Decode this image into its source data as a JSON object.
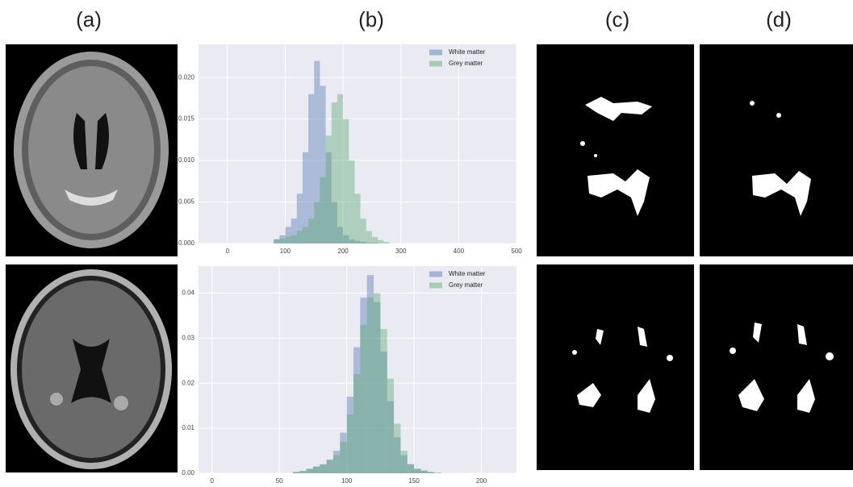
{
  "panel_labels": [
    "(a)",
    "(b)",
    "(c)",
    "(d)"
  ],
  "chart_data": [
    {
      "type": "histogram",
      "bins": [
        80,
        90,
        100,
        110,
        120,
        130,
        140,
        150,
        160,
        170,
        180,
        190,
        200,
        210,
        220,
        230,
        240,
        250,
        260,
        270,
        280
      ],
      "series": [
        {
          "name": "White matter",
          "color": "#4c72b0",
          "values": [
            0.0005,
            0.001,
            0.002,
            0.003,
            0.006,
            0.011,
            0.018,
            0.022,
            0.019,
            0.011,
            0.005,
            0.002,
            0.001,
            0.0005,
            0.0003,
            0.0002,
            0.0001,
            0.0001,
            0,
            0
          ]
        },
        {
          "name": "Grey matter",
          "color": "#55a868",
          "values": [
            0.0005,
            0.0006,
            0.0008,
            0.001,
            0.0015,
            0.002,
            0.003,
            0.005,
            0.008,
            0.013,
            0.017,
            0.018,
            0.015,
            0.01,
            0.006,
            0.003,
            0.0015,
            0.0008,
            0.0004,
            0.0002
          ]
        }
      ],
      "xlim": [
        -50,
        500
      ],
      "xticks": [
        0,
        100,
        200,
        300,
        400,
        500
      ],
      "ylim": [
        0,
        0.024
      ],
      "yticks": [
        {
          "value": 0,
          "label": "0.000"
        },
        {
          "value": 0.005,
          "label": "0.005"
        },
        {
          "value": 0.01,
          "label": "0.010"
        },
        {
          "value": 0.015,
          "label": "0.015"
        },
        {
          "value": 0.02,
          "label": "0.020"
        }
      ],
      "grid": true,
      "legend": "upper right"
    },
    {
      "type": "histogram",
      "bins": [
        60,
        65,
        70,
        75,
        80,
        85,
        90,
        95,
        100,
        105,
        110,
        115,
        120,
        125,
        130,
        135,
        140,
        145,
        150,
        155,
        160,
        165,
        170
      ],
      "series": [
        {
          "name": "White matter",
          "color": "#4c72b0",
          "values": [
            0.0003,
            0.0005,
            0.001,
            0.0015,
            0.002,
            0.003,
            0.005,
            0.009,
            0.017,
            0.028,
            0.039,
            0.044,
            0.038,
            0.027,
            0.016,
            0.008,
            0.004,
            0.002,
            0.001,
            0.0006,
            0.0003,
            0.0001
          ]
        },
        {
          "name": "Grey matter",
          "color": "#55a868",
          "values": [
            0.0003,
            0.0005,
            0.001,
            0.0015,
            0.002,
            0.003,
            0.004,
            0.007,
            0.013,
            0.022,
            0.033,
            0.039,
            0.04,
            0.032,
            0.021,
            0.011,
            0.005,
            0.002,
            0.001,
            0.0006,
            0.0003,
            0.0001
          ]
        }
      ],
      "xlim": [
        -10,
        226
      ],
      "xticks": [
        0,
        50,
        100,
        150,
        200
      ],
      "ylim": [
        0,
        0.046
      ],
      "yticks": [
        {
          "value": 0,
          "label": "0.00"
        },
        {
          "value": 0.01,
          "label": "0.01"
        },
        {
          "value": 0.02,
          "label": "0.02"
        },
        {
          "value": 0.03,
          "label": "0.03"
        },
        {
          "value": 0.04,
          "label": "0.04"
        }
      ],
      "grid": true,
      "legend": "upper right"
    }
  ]
}
